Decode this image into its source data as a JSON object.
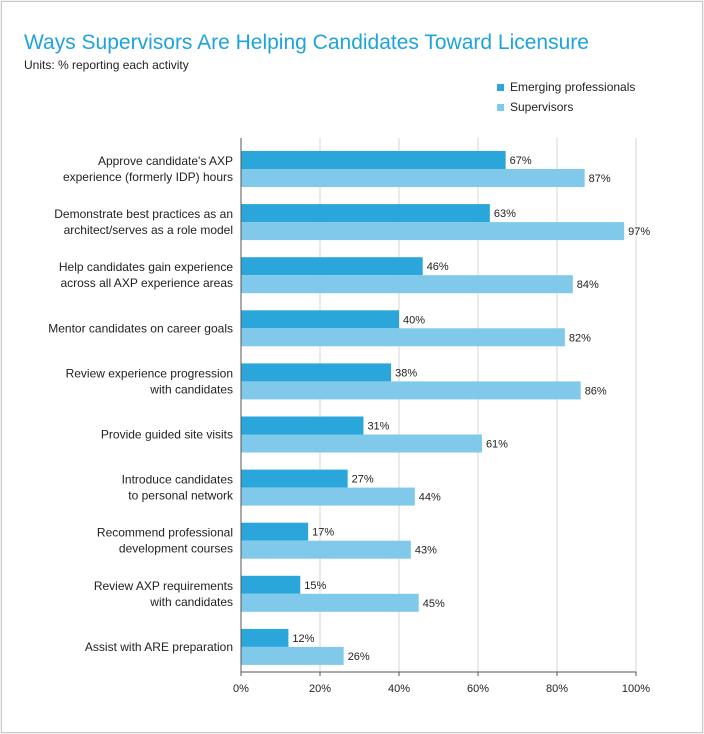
{
  "chart_data": {
    "type": "bar",
    "orientation": "horizontal",
    "title": "Ways Supervisors Are Helping Candidates Toward Licensure",
    "subtitle": "Units: % reporting each activity",
    "categories": [
      [
        "Approve candidate's AXP",
        "experience (formerly IDP) hours"
      ],
      [
        "Demonstrate best practices as an",
        "architect/serves as a role model"
      ],
      [
        "Help candidates gain experience",
        "across all AXP experience areas"
      ],
      [
        "Mentor candidates on career goals"
      ],
      [
        "Review experience progression",
        "with candidates"
      ],
      [
        "Provide guided site visits"
      ],
      [
        "Introduce candidates",
        "to personal network"
      ],
      [
        "Recommend professional",
        "development courses"
      ],
      [
        "Review AXP requirements",
        "with candidates"
      ],
      [
        "Assist with ARE preparation"
      ]
    ],
    "series": [
      {
        "name": "Emerging professionals",
        "color": "#2aa6db",
        "values": [
          67,
          63,
          46,
          40,
          38,
          31,
          27,
          17,
          15,
          12
        ],
        "labels": [
          "67%",
          "63%",
          "46%",
          "40%",
          "38%",
          "31%",
          "27%",
          "17%",
          "15%",
          "12%"
        ]
      },
      {
        "name": "Supervisors",
        "color": "#80c9ea",
        "values": [
          87,
          97,
          84,
          82,
          86,
          61,
          44,
          43,
          45,
          26
        ],
        "labels": [
          "87%",
          "97%",
          "84%",
          "82%",
          "86%",
          "61%",
          "44%",
          "43%",
          "45%",
          "26%"
        ]
      }
    ],
    "xlim": [
      0,
      100
    ],
    "xticks": [
      0,
      20,
      40,
      60,
      80,
      100
    ],
    "xtick_labels": [
      "0%",
      "20%",
      "40%",
      "60%",
      "80%",
      "100%"
    ],
    "grid": true,
    "legend_position": "top-right"
  }
}
